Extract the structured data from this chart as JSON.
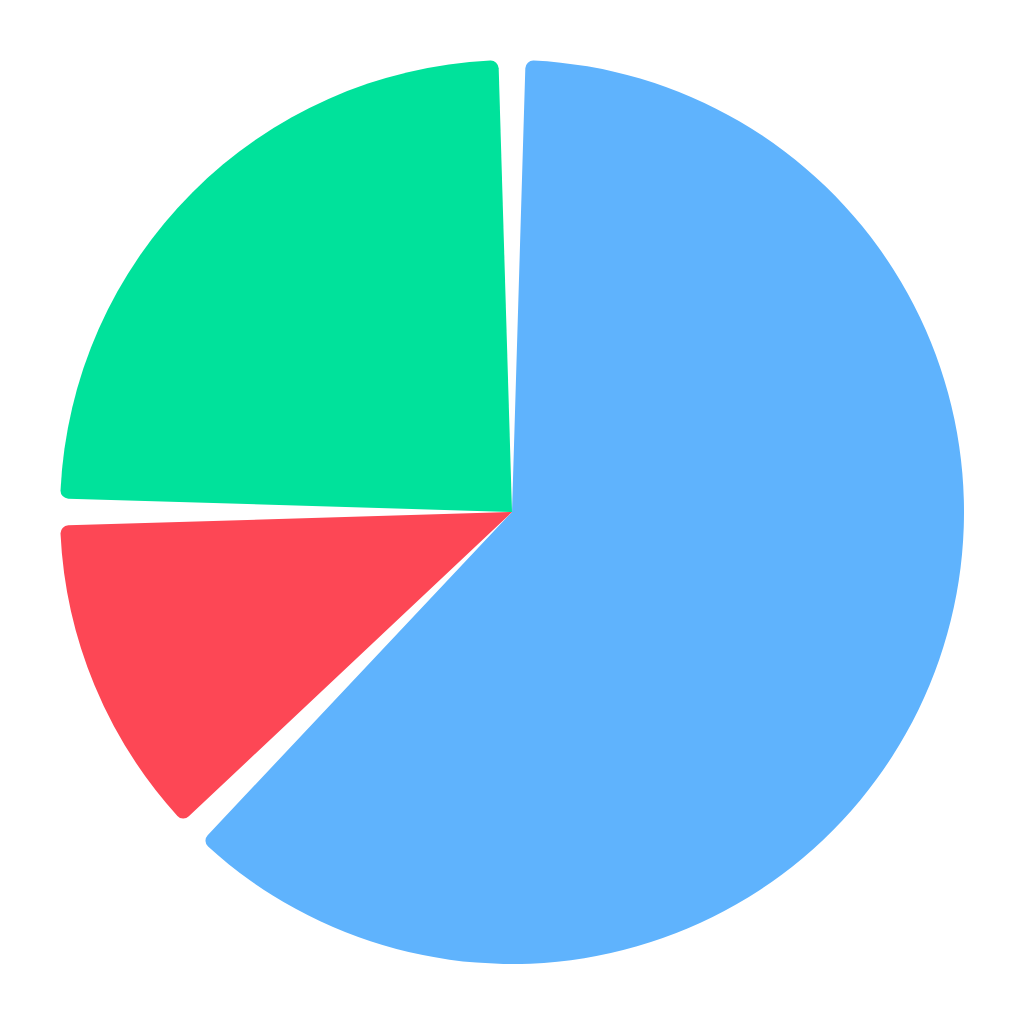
{
  "chart_data": {
    "type": "pie",
    "categories": [
      null,
      null,
      null
    ],
    "values": [
      62.5,
      12.5,
      25
    ],
    "colors": [
      "#5fb3fd",
      "#fd4755",
      "#00e29b"
    ]
  }
}
